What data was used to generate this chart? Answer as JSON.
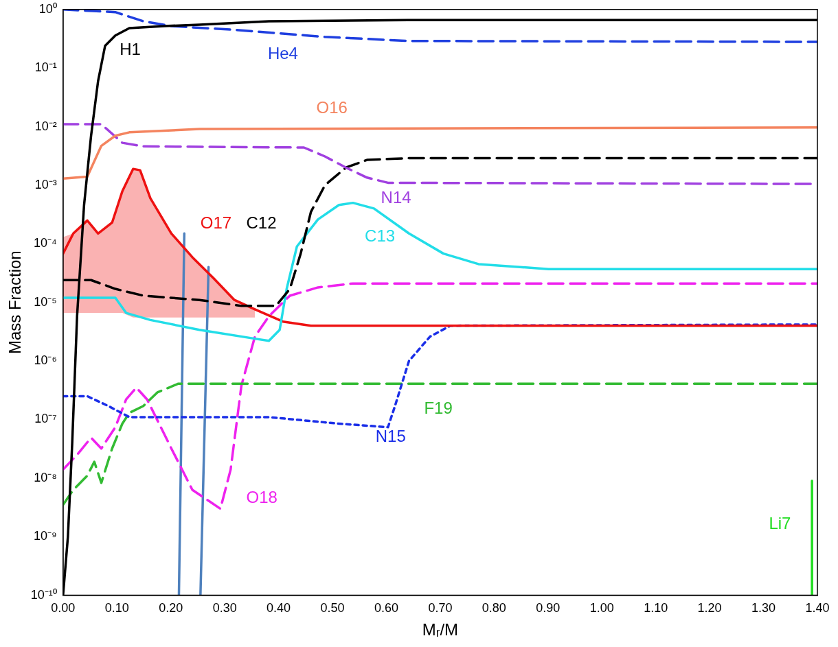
{
  "chart_data": {
    "type": "line",
    "xlabel": "Mᵣ/M",
    "ylabel": "Mass Fraction",
    "log": "y",
    "grid": false,
    "legend": false,
    "marker": "none",
    "xlim": [
      0,
      1.4
    ],
    "ylim": [
      1e-10,
      1
    ],
    "xticks": [
      {
        "value": 0,
        "label": "0.00"
      },
      {
        "value": 0.1,
        "label": "0.10"
      },
      {
        "value": 0.2,
        "label": "0.20"
      },
      {
        "value": 0.3,
        "label": "0.30"
      },
      {
        "value": 0.4,
        "label": "0.40"
      },
      {
        "value": 0.5,
        "label": "0.50"
      },
      {
        "value": 0.6,
        "label": "0.60"
      },
      {
        "value": 0.7,
        "label": "0.70"
      },
      {
        "value": 0.8,
        "label": "0.80"
      },
      {
        "value": 0.9,
        "label": "0.90"
      },
      {
        "value": 1.0,
        "label": "1.00"
      },
      {
        "value": 1.1,
        "label": "1.10"
      },
      {
        "value": 1.2,
        "label": "1.20"
      },
      {
        "value": 1.3,
        "label": "1.30"
      },
      {
        "value": 1.4,
        "label": "1.40"
      }
    ],
    "yticks": [
      {
        "value": 1e-10,
        "label": "10⁻¹⁰"
      },
      {
        "value": 1e-09,
        "label": "10⁻⁹"
      },
      {
        "value": 1e-08,
        "label": "10⁻⁸"
      },
      {
        "value": 1e-07,
        "label": "10⁻⁷"
      },
      {
        "value": 1e-06,
        "label": "10⁻⁶"
      },
      {
        "value": 1e-05,
        "label": "10⁻⁵"
      },
      {
        "value": 0.0001,
        "label": "10⁻⁴"
      },
      {
        "value": 0.001,
        "label": "10⁻³"
      },
      {
        "value": 0.01,
        "label": "10⁻²"
      },
      {
        "value": 0.1,
        "label": "10⁻¹"
      },
      {
        "value": 1,
        "label": "10⁰"
      }
    ],
    "series": [
      {
        "name": "H1",
        "color": "#000000",
        "line_style": "solid",
        "x": [
          0,
          0.009,
          0.017,
          0.026,
          0.039,
          0.052,
          0.065,
          0.078,
          0.097,
          0.123,
          0.188,
          0.253,
          0.382,
          0.64,
          1.4
        ],
        "values": [
          1e-10,
          1e-09,
          4e-08,
          5.8e-06,
          0.00046,
          0.007,
          0.06,
          0.24,
          0.36,
          0.48,
          0.52,
          0.55,
          0.63,
          0.66,
          0.66
        ]
      },
      {
        "name": "He4",
        "color": "#1f3fe0",
        "line_style": "dashed",
        "x": [
          0,
          0.097,
          0.149,
          0.201,
          0.318,
          0.486,
          0.642,
          1.4
        ],
        "values": [
          1,
          0.9,
          0.63,
          0.52,
          0.45,
          0.34,
          0.29,
          0.28
        ]
      },
      {
        "name": "O16",
        "color": "#f4845f",
        "line_style": "solid",
        "x": [
          0,
          0.045,
          0.071,
          0.097,
          0.123,
          0.253,
          1.4
        ],
        "values": [
          0.0013,
          0.0014,
          0.0047,
          0.007,
          0.008,
          0.0091,
          0.0097
        ]
      },
      {
        "name": "N14",
        "color": "#a040e0",
        "line_style": "dashed",
        "x": [
          0,
          0.071,
          0.11,
          0.149,
          0.447,
          0.486,
          0.525,
          0.564,
          0.603,
          1.4
        ],
        "values": [
          0.011,
          0.011,
          0.0053,
          0.0046,
          0.0044,
          0.0031,
          0.002,
          0.00135,
          0.0011,
          0.00105
        ]
      },
      {
        "name": "C12",
        "color": "#000000",
        "line_style": "dashed",
        "x": [
          0,
          0.052,
          0.097,
          0.149,
          0.253,
          0.331,
          0.395,
          0.421,
          0.441,
          0.46,
          0.486,
          0.525,
          0.564,
          0.642,
          1.4
        ],
        "values": [
          2.4e-05,
          2.4e-05,
          1.7e-05,
          1.3e-05,
          1.1e-05,
          8.7e-06,
          8.7e-06,
          1.7e-05,
          6.8e-05,
          0.00035,
          0.001,
          0.002,
          0.0027,
          0.0029,
          0.0029
        ]
      },
      {
        "name": "C13",
        "color": "#22dde8",
        "line_style": "solid",
        "x": [
          0,
          0.097,
          0.117,
          0.162,
          0.253,
          0.356,
          0.382,
          0.402,
          0.415,
          0.434,
          0.473,
          0.512,
          0.538,
          0.577,
          0.642,
          0.706,
          0.771,
          0.901,
          1.4
        ],
        "values": [
          1.2e-05,
          1.2e-05,
          6.6e-06,
          5e-06,
          3.4e-06,
          2.4e-06,
          2.2e-06,
          3.4e-06,
          1.7e-05,
          9e-05,
          0.00026,
          0.00046,
          0.0005,
          0.0004,
          0.00015,
          6.8e-05,
          4.5e-05,
          3.7e-05,
          3.7e-05
        ]
      },
      {
        "name": "O17",
        "color": "#ee1111",
        "line_style": "solid",
        "x": [
          0,
          0.019,
          0.045,
          0.065,
          0.091,
          0.11,
          0.13,
          0.143,
          0.162,
          0.201,
          0.24,
          0.279,
          0.318,
          0.356,
          0.408,
          0.46,
          1.4
        ],
        "values": [
          6.8e-05,
          0.00015,
          0.00025,
          0.00015,
          0.00023,
          0.00079,
          0.0019,
          0.0018,
          0.0006,
          0.00015,
          5.9e-05,
          2.6e-05,
          1.1e-05,
          7.6e-06,
          4.7e-06,
          4e-06,
          4e-06
        ],
        "lower": [
          6.6e-06,
          6.6e-06,
          6.6e-06,
          6.6e-06,
          6.6e-06,
          6.6e-06,
          5.5e-06,
          5.5e-06,
          5.5e-06,
          5.5e-06,
          5.5e-06,
          5.5e-06,
          5.5e-06,
          5.5e-06,
          null,
          null,
          null
        ],
        "upper": [
          0.00013,
          0.00015,
          0.00025,
          0.00015,
          0.00023,
          0.00079,
          0.0019,
          0.0018,
          0.0006,
          0.00015,
          5.9e-05,
          2.6e-05,
          1.1e-05,
          7.6e-06,
          null,
          null,
          null
        ]
      },
      {
        "name": "N15",
        "color": "#1a2ee8",
        "line_style": "dotted",
        "x": [
          0,
          0.045,
          0.084,
          0.123,
          0.382,
          0.512,
          0.603,
          0.616,
          0.642,
          0.681,
          0.719,
          1.4
        ],
        "values": [
          2.5e-07,
          2.5e-07,
          1.7e-07,
          1.1e-07,
          1.1e-07,
          8.5e-08,
          7.4e-08,
          1.7e-07,
          1e-06,
          2.6e-06,
          4e-06,
          4.2e-06
        ]
      },
      {
        "name": "F19",
        "color": "#33bb33",
        "line_style": "dashed",
        "x": [
          0,
          0.019,
          0.045,
          0.058,
          0.071,
          0.091,
          0.11,
          0.123,
          0.149,
          0.175,
          0.214,
          1.4
        ],
        "values": [
          3.5e-09,
          6.3e-09,
          1.1e-08,
          1.9e-08,
          8.3e-09,
          3.2e-08,
          8.5e-08,
          1.3e-07,
          1.7e-07,
          2.9e-07,
          4.1e-07,
          4.1e-07
        ]
      },
      {
        "name": "O18",
        "color": "#ee22ee",
        "line_style": "dashed",
        "x": [
          0,
          0.026,
          0.052,
          0.071,
          0.097,
          0.117,
          0.136,
          0.156,
          0.201,
          0.24,
          0.292,
          0.311,
          0.331,
          0.356,
          0.382,
          0.421,
          0.473,
          0.538,
          1.4
        ],
        "values": [
          1.4e-08,
          2.5e-08,
          4.9e-08,
          3.2e-08,
          7.4e-08,
          2.2e-07,
          3.5e-07,
          2.2e-07,
          3.2e-08,
          6.3e-09,
          3e-09,
          1.4e-08,
          3.8e-07,
          2.6e-06,
          5.8e-06,
          1.3e-05,
          1.8e-05,
          2.1e-05,
          2.1e-05
        ]
      },
      {
        "name": "Li7",
        "color": "#22dd22",
        "line_style": "solid",
        "x": [
          1.39,
          1.39
        ],
        "values": [
          1e-10,
          9e-09
        ]
      },
      {
        "color": "#4f81bd",
        "line_style": "solid",
        "x": [
          0.215,
          0.225
        ],
        "values": [
          1e-10,
          0.00015
        ]
      },
      {
        "color": "#4f81bd",
        "line_style": "solid",
        "x": [
          0.255,
          0.27
        ],
        "values": [
          1e-10,
          4e-05
        ]
      }
    ]
  }
}
